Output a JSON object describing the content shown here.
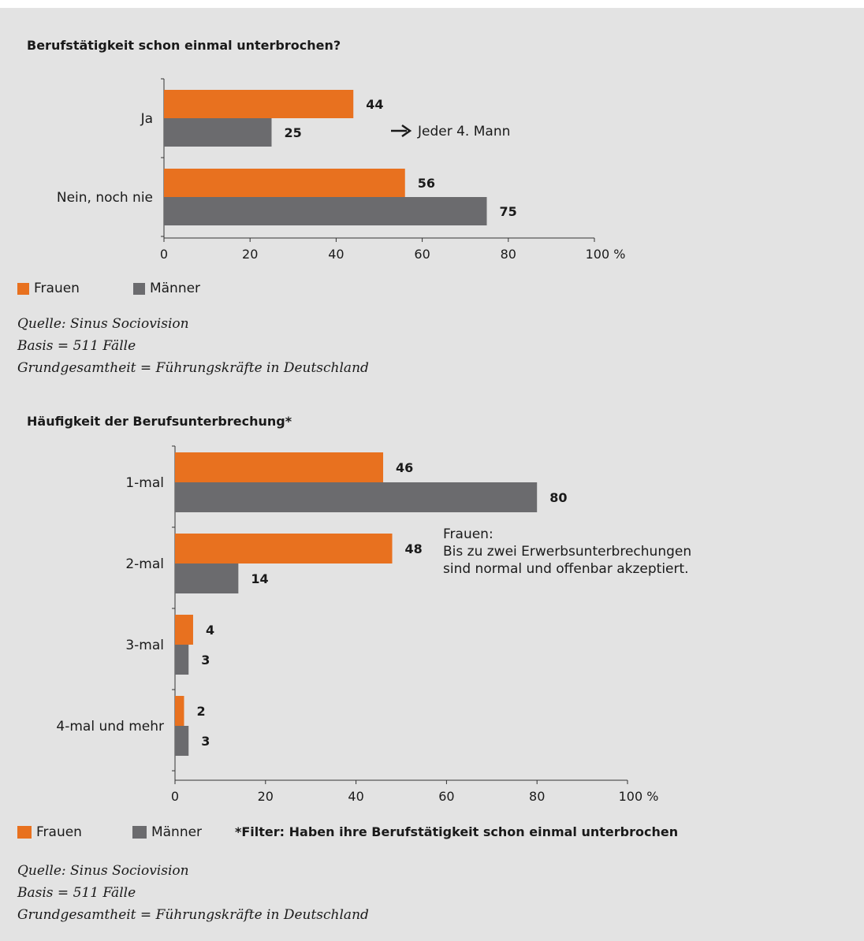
{
  "colors": {
    "frauen": "#e8711f",
    "maenner": "#6b6b6e"
  },
  "chart_data": [
    {
      "type": "bar",
      "orientation": "horizontal",
      "title": "Berufstätigkeit schon einmal unterbrochen?",
      "categories": [
        "Ja",
        "Nein, noch nie"
      ],
      "series": [
        {
          "name": "Frauen",
          "values": [
            44,
            56
          ]
        },
        {
          "name": "Männer",
          "values": [
            25,
            75
          ]
        }
      ],
      "xlim": [
        0,
        100
      ],
      "xticks": [
        "0",
        "20",
        "40",
        "60",
        "80",
        "100 %"
      ],
      "annotation": "Jeder 4. Mann",
      "legend": "bottom-left",
      "source_lines": [
        "Quelle: Sinus Sociovision",
        "Basis = 511 Fälle",
        "Grundgesamtheit = Führungskräfte in Deutschland"
      ]
    },
    {
      "type": "bar",
      "orientation": "horizontal",
      "title": "Häufigkeit der Berufsunterbrechung*",
      "categories": [
        "1-mal",
        "2-mal",
        "3-mal",
        "4-mal und mehr"
      ],
      "series": [
        {
          "name": "Frauen",
          "values": [
            46,
            48,
            4,
            2
          ]
        },
        {
          "name": "Männer",
          "values": [
            80,
            14,
            3,
            3
          ]
        }
      ],
      "xlim": [
        0,
        100
      ],
      "xticks": [
        "0",
        "20",
        "40",
        "60",
        "80",
        "100 %"
      ],
      "annotation_lines": [
        "Frauen:",
        "Bis zu zwei Erwerbsunterbrechungen",
        "sind normal und offenbar akzeptiert."
      ],
      "footnote": "*Filter: Haben ihre Berufstätigkeit schon einmal unterbrochen",
      "legend": "bottom-left",
      "source_lines": [
        "Quelle: Sinus Sociovision",
        "Basis = 511 Fälle",
        "Grundgesamtheit = Führungskräfte in Deutschland"
      ]
    }
  ]
}
